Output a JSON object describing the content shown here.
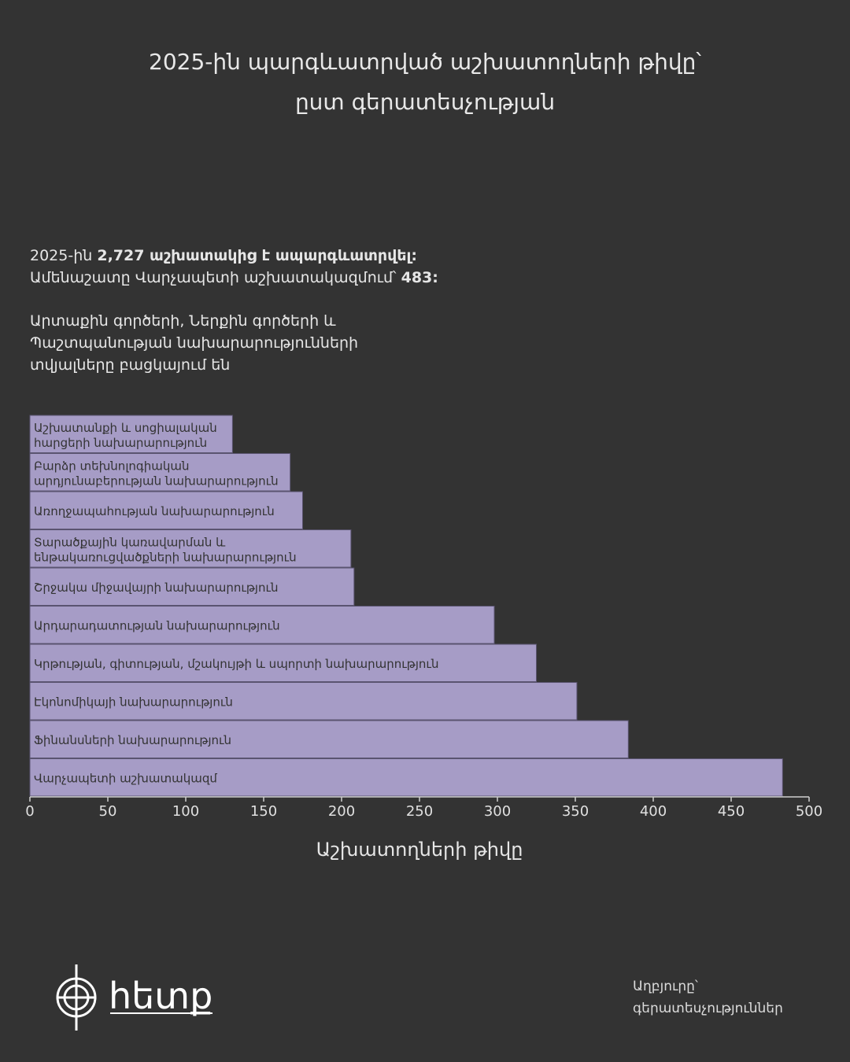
{
  "title_line1": "2025-ին պարգևատրված աշխատողների թիվը՝",
  "title_line2": "ըստ գերատեսչության",
  "summary": {
    "line1_prefix": "2025-ին ",
    "line1_bold": "2,727 աշխատակից է ապարգևատրվել:",
    "line2_prefix": "Ամենաշատը Վարչապետի աշխատակազմում՝ ",
    "line2_bold": "483:",
    "missing_line1": "Արտաքին գործերի, Ներքին գործերի և",
    "missing_line2": "Պաշտպանության նախարարությունների",
    "missing_line3": "տվյալները բացկայում են"
  },
  "source": {
    "line1": "Աղբյուրը՝",
    "line2": "գերատեսչություններ"
  },
  "logo": {
    "text": "հետք"
  },
  "colors": {
    "background": "#333333",
    "bar": "#a69cc6",
    "bar_text": "#333333",
    "text": "#e6e6e6"
  },
  "chart_data": {
    "type": "bar",
    "orientation": "horizontal",
    "categories": [
      [
        "Աշխատանքի և սոցիալական",
        "հարցերի նախարարություն"
      ],
      [
        "Բարձր տեխնոլոգիական",
        "արդյունաբերության նախարարություն"
      ],
      [
        "Առողջապահության նախարարություն"
      ],
      [
        "Տարածքային կառավարման և",
        "ենթակառուցվածքների նախարարություն"
      ],
      [
        "Շրջակա միջավայրի նախարարություն"
      ],
      [
        "Արդարադատության նախարարություն"
      ],
      [
        "Կրթության, գիտության, մշակույթի և սպորտի նախարարություն"
      ],
      [
        "Էկոնոմիկայի նախարարություն"
      ],
      [
        "Ֆինանսների նախարարություն"
      ],
      [
        "Վարչապետի աշխատակազմ"
      ]
    ],
    "values": [
      130,
      167,
      175,
      206,
      208,
      298,
      325,
      351,
      384,
      483
    ],
    "xlabel": "Աշխատողների թիվը",
    "xlim": [
      0,
      500
    ],
    "xticks": [
      "0",
      "50",
      "100",
      "150",
      "200",
      "250",
      "300",
      "350",
      "400",
      "450",
      "500"
    ],
    "grid": false,
    "legend": "none"
  }
}
